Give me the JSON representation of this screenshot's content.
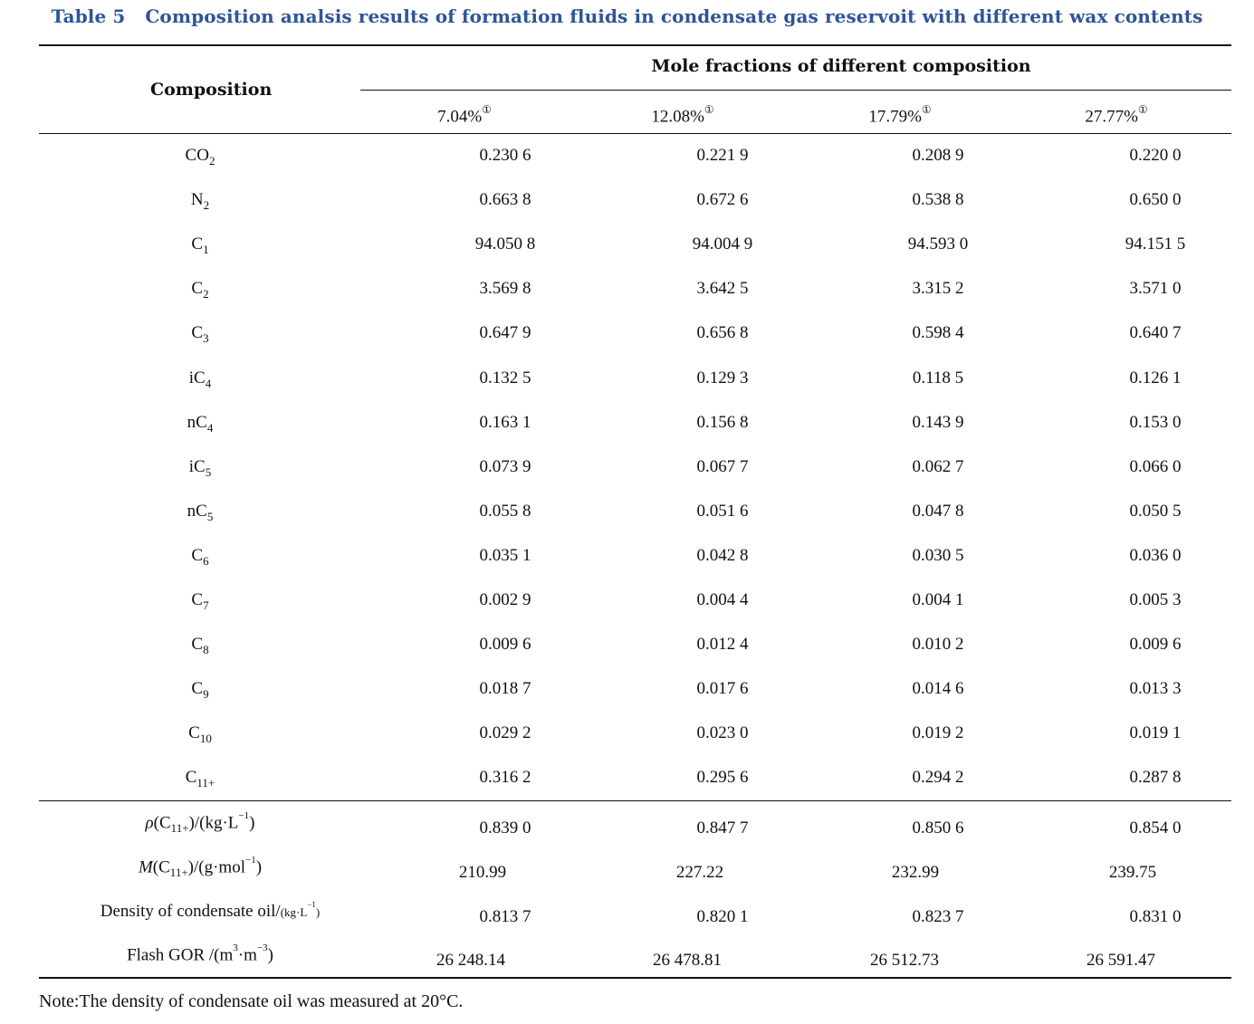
{
  "caption": {
    "number": "Table 5",
    "title": "Composition analsis results of formation fluids in condensate gas reservoit with different wax contents"
  },
  "header": {
    "composition": "Composition",
    "group": "Mole fractions of different composition",
    "footnote_mark": "①",
    "columns": [
      "7.04%",
      "12.08%",
      "17.79%",
      "27.77%"
    ]
  },
  "components": [
    {
      "base": "CO",
      "sub": "2",
      "values": [
        "0.230 6",
        "0.221 9",
        "0.208 9",
        "0.220 0"
      ]
    },
    {
      "base": "N",
      "sub": "2",
      "values": [
        "0.663 8",
        "0.672 6",
        "0.538 8",
        "0.650 0"
      ]
    },
    {
      "base": "C",
      "sub": "1",
      "values": [
        "94.050 8",
        "94.004 9",
        "94.593 0",
        "94.151 5"
      ]
    },
    {
      "base": "C",
      "sub": "2",
      "values": [
        "3.569 8",
        "3.642 5",
        "3.315 2",
        "3.571 0"
      ]
    },
    {
      "base": "C",
      "sub": "3",
      "values": [
        "0.647 9",
        "0.656 8",
        "0.598 4",
        "0.640 7"
      ]
    },
    {
      "base": "iC",
      "sub": "4",
      "values": [
        "0.132 5",
        "0.129 3",
        "0.118 5",
        "0.126 1"
      ]
    },
    {
      "base": "nC",
      "sub": "4",
      "values": [
        "0.163 1",
        "0.156 8",
        "0.143 9",
        "0.153 0"
      ]
    },
    {
      "base": "iC",
      "sub": "5",
      "values": [
        "0.073 9",
        "0.067 7",
        "0.062 7",
        "0.066 0"
      ]
    },
    {
      "base": "nC",
      "sub": "5",
      "values": [
        "0.055 8",
        "0.051 6",
        "0.047 8",
        "0.050 5"
      ]
    },
    {
      "base": "C",
      "sub": "6",
      "values": [
        "0.035 1",
        "0.042 8",
        "0.030 5",
        "0.036 0"
      ]
    },
    {
      "base": "C",
      "sub": "7",
      "values": [
        "0.002 9",
        "0.004 4",
        "0.004 1",
        "0.005 3"
      ]
    },
    {
      "base": "C",
      "sub": "8",
      "values": [
        "0.009 6",
        "0.012 4",
        "0.010 2",
        "0.009 6"
      ]
    },
    {
      "base": "C",
      "sub": "9",
      "values": [
        "0.018 7",
        "0.017 6",
        "0.014 6",
        "0.013 3"
      ]
    },
    {
      "base": "C",
      "sub": "10",
      "values": [
        "0.029 2",
        "0.023 0",
        "0.019 2",
        "0.019 1"
      ]
    },
    {
      "base": "C",
      "sub": "11+",
      "values": [
        "0.316 2",
        "0.295 6",
        "0.294 2",
        "0.287 8"
      ]
    }
  ],
  "properties": [
    {
      "label_parts": {
        "sym": "ρ",
        "open": "(C",
        "sub": "11+",
        "mid": ")/(kg·L",
        "sup": "−1",
        "close": ")"
      },
      "values": [
        "0.839 0",
        "0.847 7",
        "0.850 6",
        "0.854 0"
      ]
    },
    {
      "label_parts": {
        "sym": "M",
        "open": "(C",
        "sub": "11+",
        "mid": ")/(g·mol",
        "sup": "−1",
        "close": ")"
      },
      "values": [
        "210.99",
        "227.22",
        "232.99",
        "239.75"
      ]
    },
    {
      "label_parts": {
        "text": "Density of condensate oil/",
        "unit_a": "(kg·L",
        "unit_sup": "−1",
        "unit_b": ")"
      },
      "values": [
        "0.813 7",
        "0.820 1",
        "0.823 7",
        "0.831 0"
      ]
    },
    {
      "label_parts": {
        "text": "Flash GOR /(m",
        "sup1": "3",
        "mid": "·m",
        "sup2": "−3",
        "close": ")"
      },
      "values": [
        "26 248.14",
        "26 478.81",
        "26 512.73",
        "26 591.47"
      ]
    }
  ],
  "note": "Note:The density of condensate oil was measured at 20°C."
}
